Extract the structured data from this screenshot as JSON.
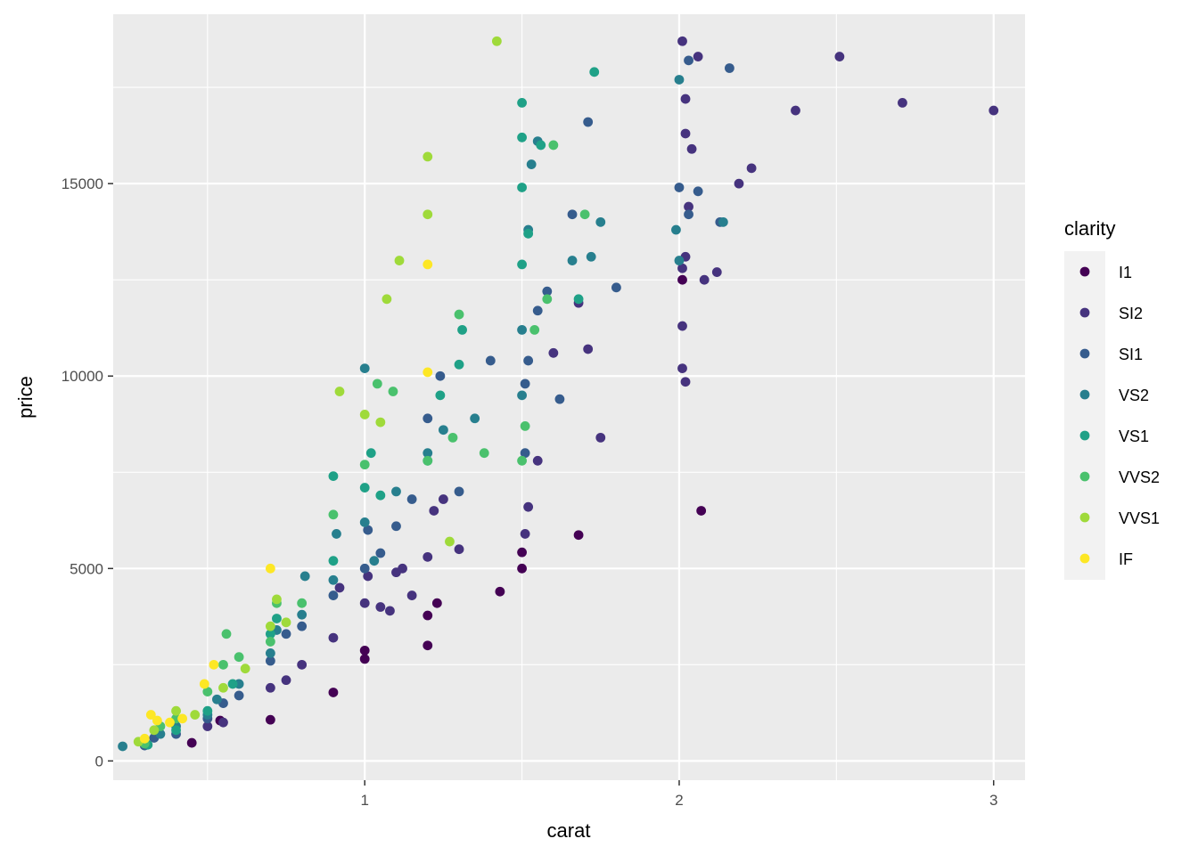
{
  "chart_data": {
    "type": "scatter",
    "xlabel": "carat",
    "ylabel": "price",
    "xlim": [
      0.2,
      3.1
    ],
    "ylim": [
      -500,
      19400
    ],
    "x_ticks": [
      1,
      2,
      3
    ],
    "x_tick_labels": [
      "1",
      "2",
      "3"
    ],
    "y_ticks": [
      0,
      5000,
      10000,
      15000
    ],
    "y_tick_labels": [
      "0",
      "5000",
      "10000",
      "15000"
    ],
    "grid": true,
    "legend": {
      "title": "clarity",
      "position": "right",
      "entries": [
        {
          "label": "I1",
          "color": "#440154"
        },
        {
          "label": "SI2",
          "color": "#46337E"
        },
        {
          "label": "SI1",
          "color": "#365C8D"
        },
        {
          "label": "VS2",
          "color": "#277F8E"
        },
        {
          "label": "VS1",
          "color": "#1FA187"
        },
        {
          "label": "VVS2",
          "color": "#4AC16D"
        },
        {
          "label": "VVS1",
          "color": "#9FDA3A"
        },
        {
          "label": "IF",
          "color": "#FDE725"
        }
      ]
    },
    "series": [
      {
        "name": "I1",
        "points": [
          [
            0.45,
            470
          ],
          [
            0.54,
            1050
          ],
          [
            0.7,
            1070
          ],
          [
            0.9,
            1780
          ],
          [
            1.0,
            2650
          ],
          [
            1.0,
            2870
          ],
          [
            1.2,
            3000
          ],
          [
            1.2,
            3780
          ],
          [
            1.23,
            4100
          ],
          [
            1.43,
            4400
          ],
          [
            1.5,
            5000
          ],
          [
            1.5,
            5420
          ],
          [
            1.68,
            5870
          ],
          [
            2.07,
            6500
          ],
          [
            2.01,
            12500
          ]
        ]
      },
      {
        "name": "SI2",
        "points": [
          [
            0.5,
            900
          ],
          [
            0.55,
            1000
          ],
          [
            0.7,
            1900
          ],
          [
            0.75,
            2100
          ],
          [
            0.8,
            2500
          ],
          [
            0.9,
            3200
          ],
          [
            0.92,
            4500
          ],
          [
            1.0,
            4100
          ],
          [
            1.01,
            4800
          ],
          [
            1.05,
            4000
          ],
          [
            1.08,
            3900
          ],
          [
            1.1,
            4900
          ],
          [
            1.12,
            5000
          ],
          [
            1.15,
            4300
          ],
          [
            1.2,
            5300
          ],
          [
            1.22,
            6500
          ],
          [
            1.25,
            6800
          ],
          [
            1.3,
            5500
          ],
          [
            1.51,
            5900
          ],
          [
            1.52,
            6600
          ],
          [
            1.55,
            7800
          ],
          [
            1.6,
            10600
          ],
          [
            1.68,
            11900
          ],
          [
            1.71,
            10700
          ],
          [
            1.75,
            8400
          ],
          [
            2.01,
            12800
          ],
          [
            2.02,
            13100
          ],
          [
            2.03,
            14400
          ],
          [
            2.04,
            15900
          ],
          [
            2.02,
            16300
          ],
          [
            2.02,
            17200
          ],
          [
            2.01,
            18700
          ],
          [
            2.06,
            18300
          ],
          [
            2.01,
            10200
          ],
          [
            2.02,
            9850
          ],
          [
            2.01,
            11300
          ],
          [
            2.08,
            12500
          ],
          [
            2.12,
            12700
          ],
          [
            2.19,
            15000
          ],
          [
            2.23,
            15400
          ],
          [
            2.37,
            16900
          ],
          [
            2.51,
            18300
          ],
          [
            2.71,
            17100
          ],
          [
            3.0,
            16900
          ]
        ]
      },
      {
        "name": "SI1",
        "points": [
          [
            0.3,
            400
          ],
          [
            0.33,
            600
          ],
          [
            0.4,
            700
          ],
          [
            0.5,
            1100
          ],
          [
            0.55,
            1500
          ],
          [
            0.6,
            1700
          ],
          [
            0.7,
            2600
          ],
          [
            0.75,
            3300
          ],
          [
            0.8,
            3500
          ],
          [
            0.9,
            4300
          ],
          [
            1.0,
            5000
          ],
          [
            1.01,
            6000
          ],
          [
            1.05,
            5400
          ],
          [
            1.1,
            6100
          ],
          [
            1.15,
            6800
          ],
          [
            1.2,
            8900
          ],
          [
            1.24,
            10000
          ],
          [
            1.3,
            7000
          ],
          [
            1.4,
            10400
          ],
          [
            1.51,
            8000
          ],
          [
            1.51,
            9800
          ],
          [
            1.52,
            10400
          ],
          [
            1.55,
            11700
          ],
          [
            1.58,
            12200
          ],
          [
            1.62,
            9400
          ],
          [
            1.66,
            14200
          ],
          [
            1.71,
            16600
          ],
          [
            1.8,
            12300
          ],
          [
            2.0,
            14900
          ],
          [
            2.03,
            14200
          ],
          [
            2.06,
            14800
          ],
          [
            2.13,
            14000
          ],
          [
            2.16,
            18000
          ],
          [
            2.03,
            18200
          ]
        ]
      },
      {
        "name": "VS2",
        "points": [
          [
            0.23,
            380
          ],
          [
            0.3,
            500
          ],
          [
            0.35,
            700
          ],
          [
            0.4,
            900
          ],
          [
            0.5,
            1200
          ],
          [
            0.53,
            1600
          ],
          [
            0.6,
            2000
          ],
          [
            0.7,
            2800
          ],
          [
            0.72,
            3400
          ],
          [
            0.8,
            3800
          ],
          [
            0.81,
            4800
          ],
          [
            0.9,
            4700
          ],
          [
            0.91,
            5900
          ],
          [
            1.0,
            6200
          ],
          [
            1.0,
            10200
          ],
          [
            1.03,
            5200
          ],
          [
            1.1,
            7000
          ],
          [
            1.2,
            8000
          ],
          [
            1.25,
            8600
          ],
          [
            1.35,
            8900
          ],
          [
            1.5,
            9500
          ],
          [
            1.5,
            11200
          ],
          [
            1.52,
            13800
          ],
          [
            1.53,
            15500
          ],
          [
            1.55,
            16100
          ],
          [
            1.66,
            13000
          ],
          [
            1.72,
            13100
          ],
          [
            1.75,
            14000
          ],
          [
            1.99,
            13800
          ],
          [
            2.0,
            17700
          ],
          [
            2.0,
            13000
          ],
          [
            2.14,
            14000
          ]
        ]
      },
      {
        "name": "VS1",
        "points": [
          [
            0.31,
            420
          ],
          [
            0.4,
            800
          ],
          [
            0.5,
            1300
          ],
          [
            0.58,
            2000
          ],
          [
            0.7,
            3300
          ],
          [
            0.72,
            3700
          ],
          [
            0.9,
            5200
          ],
          [
            0.9,
            7400
          ],
          [
            1.0,
            7100
          ],
          [
            1.02,
            8000
          ],
          [
            1.05,
            6900
          ],
          [
            1.2,
            7800
          ],
          [
            1.24,
            9500
          ],
          [
            1.3,
            10300
          ],
          [
            1.31,
            11200
          ],
          [
            1.5,
            12900
          ],
          [
            1.5,
            14900
          ],
          [
            1.5,
            16200
          ],
          [
            1.5,
            17100
          ],
          [
            1.52,
            13700
          ],
          [
            1.56,
            16000
          ],
          [
            1.68,
            12000
          ],
          [
            1.73,
            17900
          ]
        ]
      },
      {
        "name": "VVS2",
        "points": [
          [
            0.3,
            450
          ],
          [
            0.35,
            900
          ],
          [
            0.4,
            1100
          ],
          [
            0.5,
            1800
          ],
          [
            0.55,
            2500
          ],
          [
            0.56,
            3300
          ],
          [
            0.6,
            2700
          ],
          [
            0.7,
            3100
          ],
          [
            0.72,
            4100
          ],
          [
            0.8,
            4100
          ],
          [
            0.9,
            6400
          ],
          [
            1.0,
            7700
          ],
          [
            1.04,
            9800
          ],
          [
            1.09,
            9600
          ],
          [
            1.2,
            7800
          ],
          [
            1.28,
            8400
          ],
          [
            1.3,
            11600
          ],
          [
            1.38,
            8000
          ],
          [
            1.5,
            7800
          ],
          [
            1.51,
            8700
          ],
          [
            1.54,
            11200
          ],
          [
            1.58,
            12000
          ],
          [
            1.6,
            16000
          ],
          [
            1.7,
            14200
          ]
        ]
      },
      {
        "name": "VVS1",
        "points": [
          [
            0.28,
            500
          ],
          [
            0.33,
            800
          ],
          [
            0.4,
            1300
          ],
          [
            0.46,
            1200
          ],
          [
            0.55,
            1900
          ],
          [
            0.62,
            2400
          ],
          [
            0.7,
            3500
          ],
          [
            0.72,
            4200
          ],
          [
            0.75,
            3600
          ],
          [
            0.92,
            9600
          ],
          [
            1.0,
            9000
          ],
          [
            1.05,
            8800
          ],
          [
            1.07,
            12000
          ],
          [
            1.11,
            13000
          ],
          [
            1.2,
            14200
          ],
          [
            1.2,
            15700
          ],
          [
            1.27,
            5700
          ],
          [
            1.42,
            18700
          ]
        ]
      },
      {
        "name": "IF",
        "points": [
          [
            0.3,
            580
          ],
          [
            0.32,
            1200
          ],
          [
            0.34,
            1050
          ],
          [
            0.38,
            1000
          ],
          [
            0.42,
            1100
          ],
          [
            0.49,
            2000
          ],
          [
            0.52,
            2500
          ],
          [
            0.7,
            5000
          ],
          [
            1.2,
            10100
          ],
          [
            1.2,
            12900
          ]
        ]
      }
    ]
  }
}
